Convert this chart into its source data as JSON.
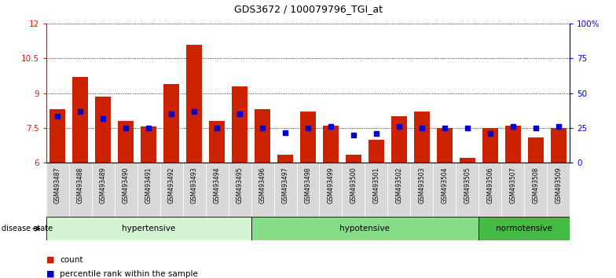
{
  "title": "GDS3672 / 100079796_TGI_at",
  "samples": [
    "GSM493487",
    "GSM493488",
    "GSM493489",
    "GSM493490",
    "GSM493491",
    "GSM493492",
    "GSM493493",
    "GSM493494",
    "GSM493495",
    "GSM493496",
    "GSM493497",
    "GSM493498",
    "GSM493499",
    "GSM493500",
    "GSM493501",
    "GSM493502",
    "GSM493503",
    "GSM493504",
    "GSM493505",
    "GSM493506",
    "GSM493507",
    "GSM493508",
    "GSM493509"
  ],
  "counts": [
    8.3,
    9.7,
    8.85,
    7.8,
    7.55,
    9.4,
    11.1,
    7.8,
    9.3,
    8.3,
    6.35,
    8.2,
    7.6,
    6.35,
    7.0,
    8.0,
    8.2,
    7.5,
    6.2,
    7.5,
    7.6,
    7.1,
    7.5
  ],
  "percentile": [
    8.0,
    8.2,
    7.9,
    7.5,
    7.5,
    8.1,
    8.2,
    7.5,
    8.1,
    7.5,
    7.3,
    7.5,
    7.55,
    7.2,
    7.25,
    7.55,
    7.5,
    7.5,
    7.5,
    7.25,
    7.55,
    7.5,
    7.55
  ],
  "bar_color": "#cc2200",
  "marker_color": "#0000cc",
  "ymin": 6,
  "ymax": 12,
  "yticks": [
    6,
    7.5,
    9,
    10.5,
    12
  ],
  "ytick_labels": [
    "6",
    "7.5",
    "9",
    "10.5",
    "12"
  ],
  "y2min": 0,
  "y2max": 100,
  "y2ticks": [
    0,
    25,
    50,
    75,
    100
  ],
  "y2tick_labels": [
    "0",
    "25",
    "50",
    "75",
    "100%"
  ],
  "legend_count": "count",
  "legend_pct": "percentile rank within the sample",
  "disease_state_label": "disease state",
  "group_boundaries": [
    {
      "label": "hypertensive",
      "start": 0,
      "end": 9,
      "color": "#d4f5d4"
    },
    {
      "label": "hypotensive",
      "start": 9,
      "end": 19,
      "color": "#88dd88"
    },
    {
      "label": "normotensive",
      "start": 19,
      "end": 23,
      "color": "#44bb44"
    }
  ],
  "xtick_bg": "#d8d8d8"
}
